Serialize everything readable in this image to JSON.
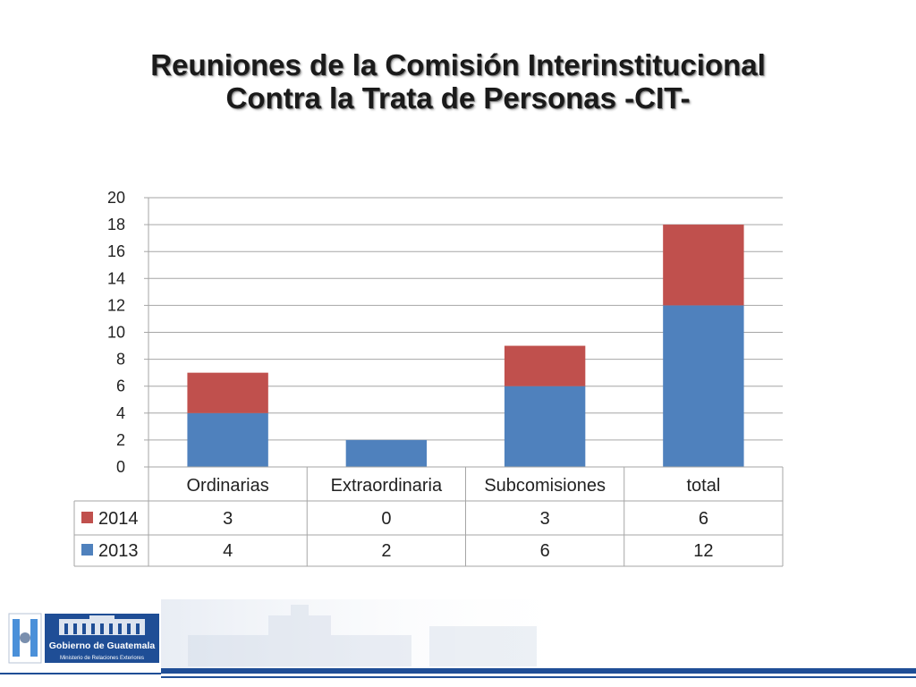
{
  "slide": {
    "title_line1": "Reuniones de la Comisión Interinstitucional",
    "title_line2": "Contra la Trata de Personas -CIT-"
  },
  "chart_data": {
    "type": "bar",
    "stacked": true,
    "categories": [
      "Ordinarias",
      "Extraordinaria",
      "Subcomisiones",
      "total"
    ],
    "series": [
      {
        "name": "2013",
        "values": [
          4,
          2,
          6,
          12
        ],
        "color": "#4f81bd"
      },
      {
        "name": "2014",
        "values": [
          3,
          0,
          3,
          6
        ],
        "color": "#c0504d"
      }
    ],
    "ylim": [
      0,
      20
    ],
    "yticks": [
      0,
      2,
      4,
      6,
      8,
      10,
      12,
      14,
      16,
      18,
      20
    ],
    "grid": true,
    "legend": "data-table",
    "data_table_rows": [
      "2014",
      "2013"
    ]
  },
  "footer": {
    "logo_line1": "Gobierno de Guatemala",
    "logo_line2": "Ministerio de Relaciones Exteriores",
    "brand_color": "#1f4e96"
  }
}
